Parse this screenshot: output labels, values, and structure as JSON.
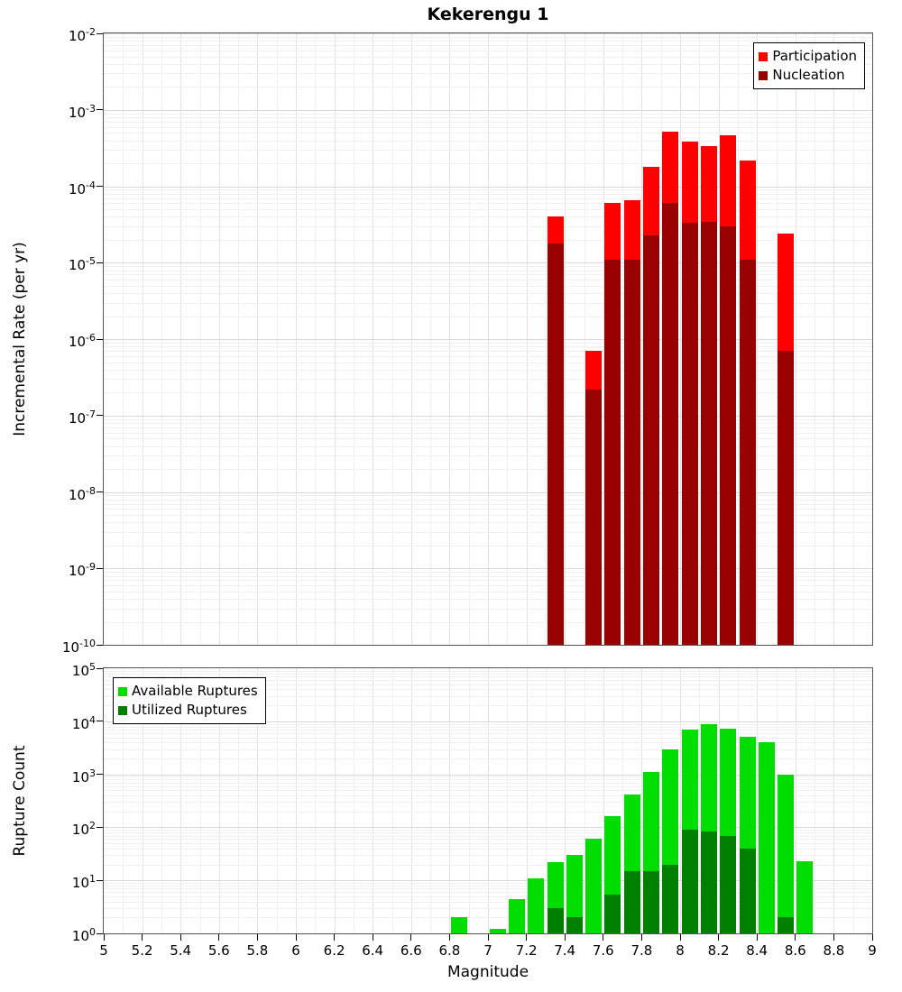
{
  "figure_title": "Kekerengu 1",
  "chart_data": [
    {
      "type": "bar",
      "title": "Kekerengu 1",
      "ylabel": "Incremental Rate (per yr)",
      "xlabel": "",
      "yscale": "log",
      "ylim": [
        1e-10,
        0.01
      ],
      "xlim": [
        5,
        9
      ],
      "bin_width": 0.1,
      "grid": true,
      "legend_position": "top-right",
      "y_tick_exponents": [
        -2,
        -3,
        -4,
        -5,
        -6,
        -7,
        -8,
        -9,
        -10
      ],
      "series": [
        {
          "name": "Participation",
          "color": "#ff0000",
          "x": [
            7.35,
            7.55,
            7.65,
            7.75,
            7.85,
            7.95,
            8.05,
            8.15,
            8.25,
            8.35,
            8.55
          ],
          "values": [
            4e-05,
            7e-07,
            6e-05,
            6.5e-05,
            0.00018,
            0.00052,
            0.00038,
            0.00034,
            0.00047,
            0.00022,
            2.4e-05
          ]
        },
        {
          "name": "Nucleation",
          "color": "#990000",
          "x": [
            7.35,
            7.55,
            7.65,
            7.75,
            7.85,
            7.95,
            8.05,
            8.15,
            8.25,
            8.35,
            8.55
          ],
          "values": [
            1.8e-05,
            2.2e-07,
            1.1e-05,
            1.1e-05,
            2.3e-05,
            6e-05,
            3.3e-05,
            3.4e-05,
            3e-05,
            1.1e-05,
            7e-07
          ]
        }
      ]
    },
    {
      "type": "bar",
      "title": "",
      "ylabel": "Rupture Count",
      "xlabel": "Magnitude",
      "yscale": "log",
      "ylim": [
        1,
        100000.0
      ],
      "xlim": [
        5,
        9
      ],
      "bin_width": 0.1,
      "grid": true,
      "legend_position": "top-left",
      "y_tick_exponents": [
        5,
        4,
        3,
        2,
        1,
        0
      ],
      "x_tick_labels": [
        "5",
        "5.2",
        "5.4",
        "5.6",
        "5.8",
        "6",
        "6.2",
        "6.4",
        "6.6",
        "6.8",
        "7",
        "7.2",
        "7.4",
        "7.6",
        "7.8",
        "8",
        "8.2",
        "8.4",
        "8.6",
        "8.8",
        "9"
      ],
      "series": [
        {
          "name": "Available Ruptures",
          "color": "#00dd00",
          "x": [
            6.85,
            7.05,
            7.15,
            7.25,
            7.35,
            7.45,
            7.55,
            7.65,
            7.75,
            7.85,
            7.95,
            8.05,
            8.15,
            8.25,
            8.35,
            8.45,
            8.55,
            8.65
          ],
          "values": [
            2,
            1.2,
            4.5,
            11,
            22,
            30,
            60,
            160,
            420,
            1100,
            3000,
            7000,
            9000,
            7200,
            5200,
            4000,
            1000,
            23
          ]
        },
        {
          "name": "Utilized Ruptures",
          "color": "#008000",
          "x": [
            6.85,
            7.05,
            7.15,
            7.25,
            7.35,
            7.45,
            7.55,
            7.65,
            7.75,
            7.85,
            7.95,
            8.05,
            8.15,
            8.25,
            8.35,
            8.45,
            8.55,
            8.65
          ],
          "values": [
            0,
            0,
            0,
            0,
            3,
            2,
            1,
            5.5,
            15,
            15,
            20,
            90,
            85,
            70,
            40,
            0,
            2,
            0
          ]
        }
      ]
    }
  ]
}
